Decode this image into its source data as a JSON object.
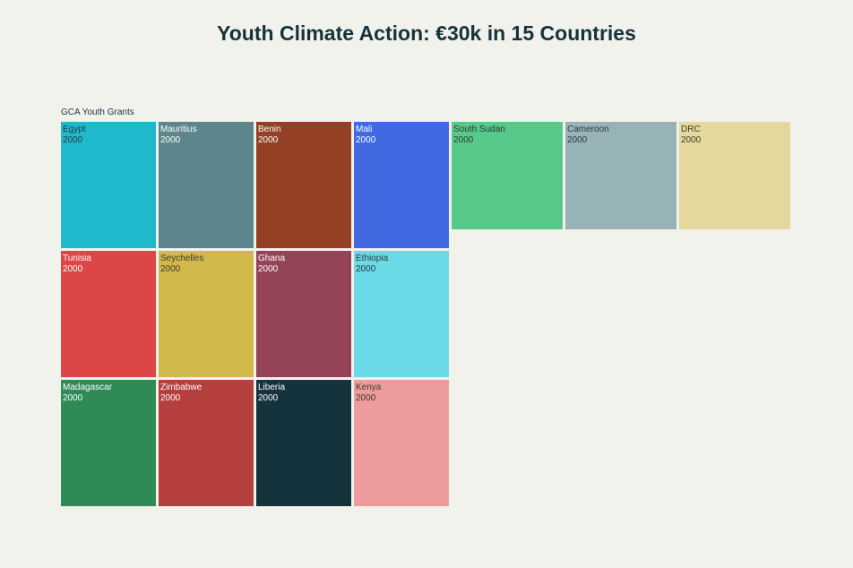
{
  "chart_data": {
    "type": "treemap",
    "title": "Youth Climate Action: €30k in 15 Countries",
    "group": "GCA Youth Grants",
    "items": [
      {
        "label": "Egypt",
        "value": 2000,
        "color": "#20b8cc",
        "text": "#2a3a40"
      },
      {
        "label": "Mauritius",
        "value": 2000,
        "color": "#5c868c",
        "text": "#ffffff"
      },
      {
        "label": "Benin",
        "value": 2000,
        "color": "#944024",
        "text": "#ffffff"
      },
      {
        "label": "Mali",
        "value": 2000,
        "color": "#4169e1",
        "text": "#ffffff"
      },
      {
        "label": "Tunisia",
        "value": 2000,
        "color": "#dc4646",
        "text": "#ffffff"
      },
      {
        "label": "Seychelles",
        "value": 2000,
        "color": "#d2b94c",
        "text": "#3a3a30"
      },
      {
        "label": "Ghana",
        "value": 2000,
        "color": "#944456",
        "text": "#ffffff"
      },
      {
        "label": "Ethiopia",
        "value": 2000,
        "color": "#6adae6",
        "text": "#2a3a40"
      },
      {
        "label": "Madagascar",
        "value": 2000,
        "color": "#2e8b57",
        "text": "#ffffff"
      },
      {
        "label": "Zimbabwe",
        "value": 2000,
        "color": "#b43f3d",
        "text": "#ffffff"
      },
      {
        "label": "Liberia",
        "value": 2000,
        "color": "#15333d",
        "text": "#ffffff"
      },
      {
        "label": "Kenya",
        "value": 2000,
        "color": "#ec9c9c",
        "text": "#3a3a30"
      },
      {
        "label": "South Sudan",
        "value": 2000,
        "color": "#57c98a",
        "text": "#2a3a30"
      },
      {
        "label": "Cameroon",
        "value": 2000,
        "color": "#97b3b8",
        "text": "#2a3a40"
      },
      {
        "label": "DRC",
        "value": 2000,
        "color": "#e5d89d",
        "text": "#3a3a30"
      }
    ]
  }
}
